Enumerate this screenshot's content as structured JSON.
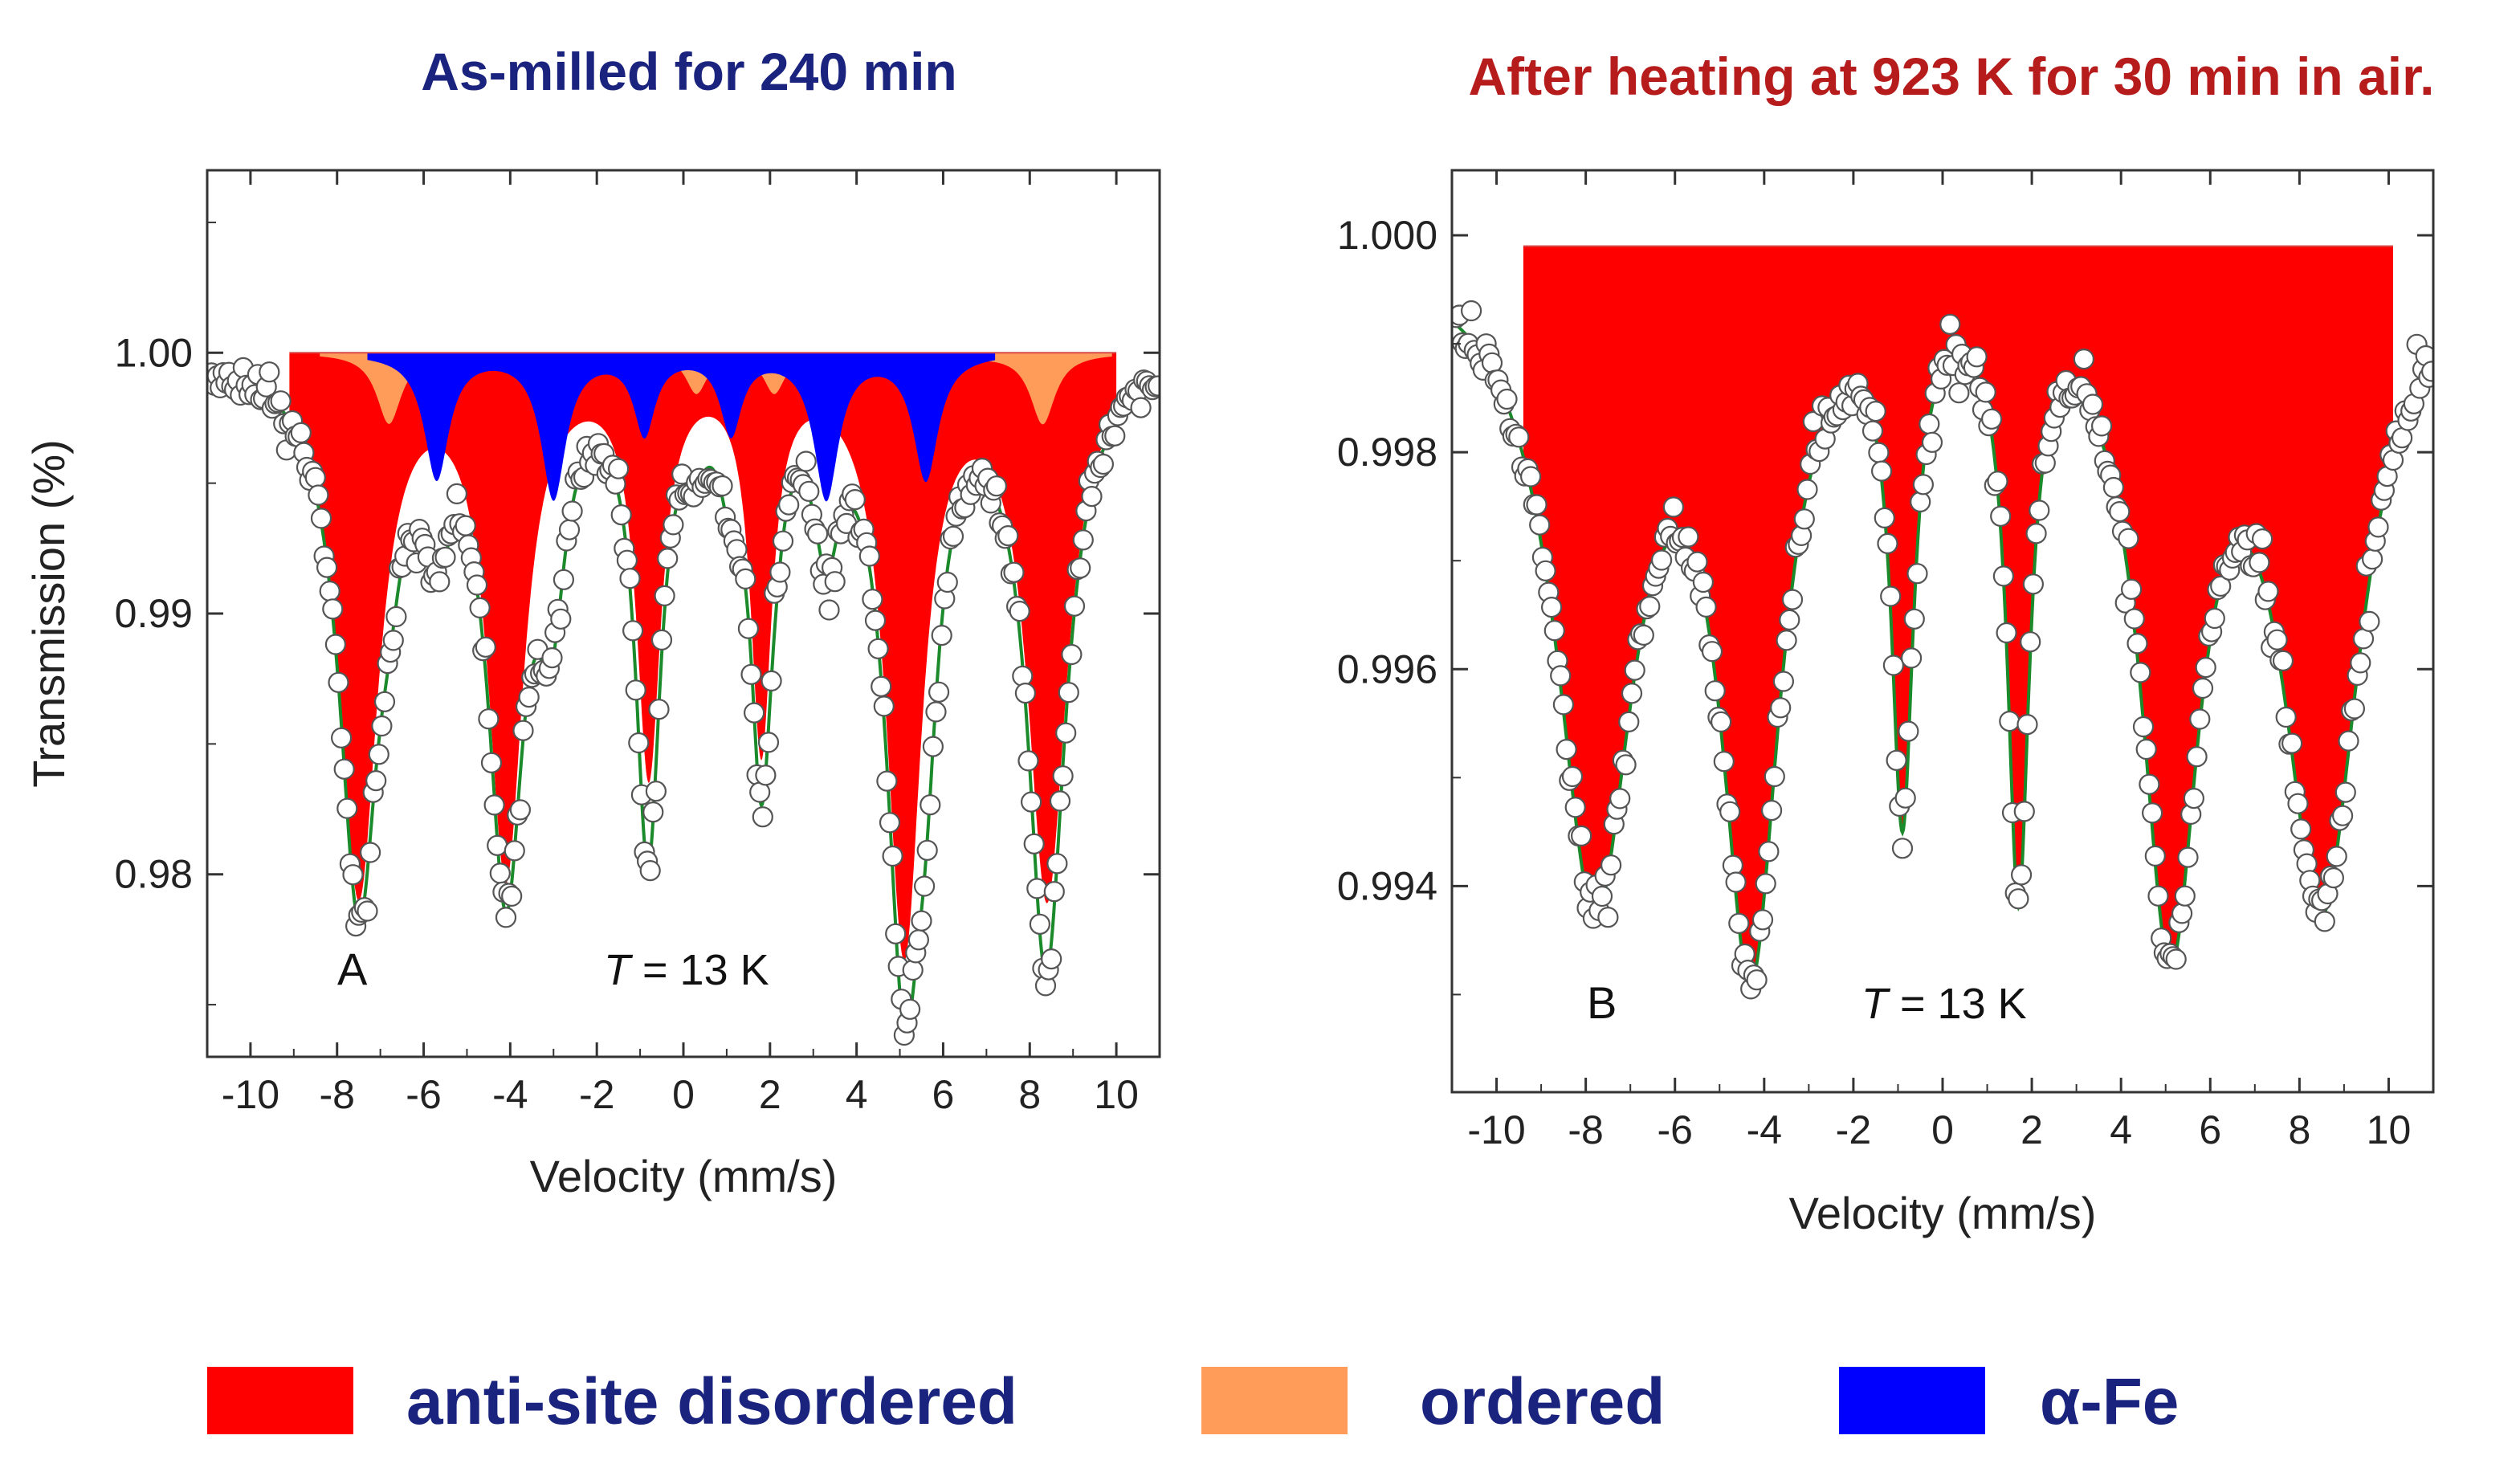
{
  "chart_data": [
    {
      "type": "scatter",
      "panel_label": "A",
      "title": "As-milled for 240 min",
      "title_color": "#1a237e",
      "xlabel": "Velocity (mm/s)",
      "ylabel": "Transmission (%)",
      "annotation": "T = 13 K",
      "annotation_italic": "T",
      "annotation_rest": " = 13 K",
      "xlim": [
        -11,
        11
      ],
      "ylim": [
        0.973,
        1.007
      ],
      "xticks": [
        -10,
        -8,
        -6,
        -4,
        -2,
        0,
        2,
        4,
        6,
        8,
        10
      ],
      "xtick_labels": [
        "-10",
        "-8",
        "-6",
        "-4",
        "-2",
        "0",
        "2",
        "4",
        "6",
        "8",
        "10"
      ],
      "yticks": [
        0.98,
        0.99,
        1.0
      ],
      "ytick_labels": [
        "0.98",
        "0.99",
        "1.00"
      ],
      "baseline": 1.0,
      "series": [
        {
          "name": "anti-site disordered",
          "kind": "filled-sextet",
          "color": "#ff0000",
          "x": [
            -7.5,
            -4.1,
            -0.8,
            1.8,
            5.1,
            8.4
          ],
          "depth": [
            0.0205,
            0.0195,
            0.0155,
            0.0145,
            0.0225,
            0.0205
          ],
          "width": [
            0.55,
            0.5,
            0.35,
            0.3,
            0.5,
            0.55
          ]
        },
        {
          "name": "ordered",
          "kind": "filled-sextet",
          "color": "#ff9c5a",
          "x": [
            -6.8,
            -3.2,
            0.3,
            2.1,
            5.6,
            8.3
          ],
          "depth": [
            0.0027,
            0.0022,
            0.0015,
            0.0015,
            0.0022,
            0.0027
          ],
          "width": [
            0.35,
            0.35,
            0.3,
            0.3,
            0.35,
            0.35
          ]
        },
        {
          "name": "α-Fe",
          "kind": "filled-sextet",
          "color": "#0000ff",
          "x": [
            -5.7,
            -3.0,
            -0.9,
            1.1,
            3.3,
            5.6
          ],
          "depth": [
            0.0048,
            0.0055,
            0.003,
            0.003,
            0.0055,
            0.0048
          ],
          "width": [
            0.35,
            0.35,
            0.3,
            0.3,
            0.35,
            0.35
          ]
        },
        {
          "name": "fit",
          "kind": "line",
          "color": "#1a8a2a"
        },
        {
          "name": "measured",
          "kind": "points",
          "marker": "open-circle"
        }
      ]
    },
    {
      "type": "scatter",
      "panel_label": "B",
      "title": "After heating at 923 K for 30 min in air.",
      "title_color": "#b71c1c",
      "xlabel": "Velocity (mm/s)",
      "ylabel": "",
      "annotation": "T = 13 K",
      "annotation_italic": "T",
      "annotation_rest": " = 13 K",
      "xlim": [
        -11,
        11
      ],
      "ylim": [
        0.9921,
        1.0006
      ],
      "xticks": [
        -10,
        -8,
        -6,
        -4,
        -2,
        0,
        2,
        4,
        6,
        8,
        10
      ],
      "xtick_labels": [
        "-10",
        "-8",
        "-6",
        "-4",
        "-2",
        "0",
        "2",
        "4",
        "6",
        "8",
        "10"
      ],
      "yticks": [
        0.994,
        0.996,
        0.998,
        1.0
      ],
      "ytick_labels": [
        "0.994",
        "0.996",
        "0.998",
        "1.000"
      ],
      "baseline": 0.9999,
      "series": [
        {
          "name": "anti-site disordered",
          "kind": "filled-sextet",
          "color": "#ff0000",
          "x": [
            -7.8,
            -4.3,
            -0.9,
            1.7,
            5.1,
            8.5
          ],
          "depth": [
            0.0058,
            0.0062,
            0.0047,
            0.0054,
            0.006,
            0.0058
          ],
          "width": [
            1.05,
            0.8,
            0.3,
            0.3,
            0.8,
            1.05
          ]
        },
        {
          "name": "fit",
          "kind": "line",
          "color": "#1a8a2a"
        },
        {
          "name": "measured",
          "kind": "points",
          "marker": "open-circle"
        }
      ]
    }
  ],
  "legend": {
    "items": [
      {
        "label": "anti-site disordered",
        "color": "#ff0000"
      },
      {
        "label": "ordered",
        "color": "#ff9c5a"
      },
      {
        "label": "α-Fe",
        "color": "#0000ff"
      }
    ],
    "label_color": "#1a237e"
  }
}
